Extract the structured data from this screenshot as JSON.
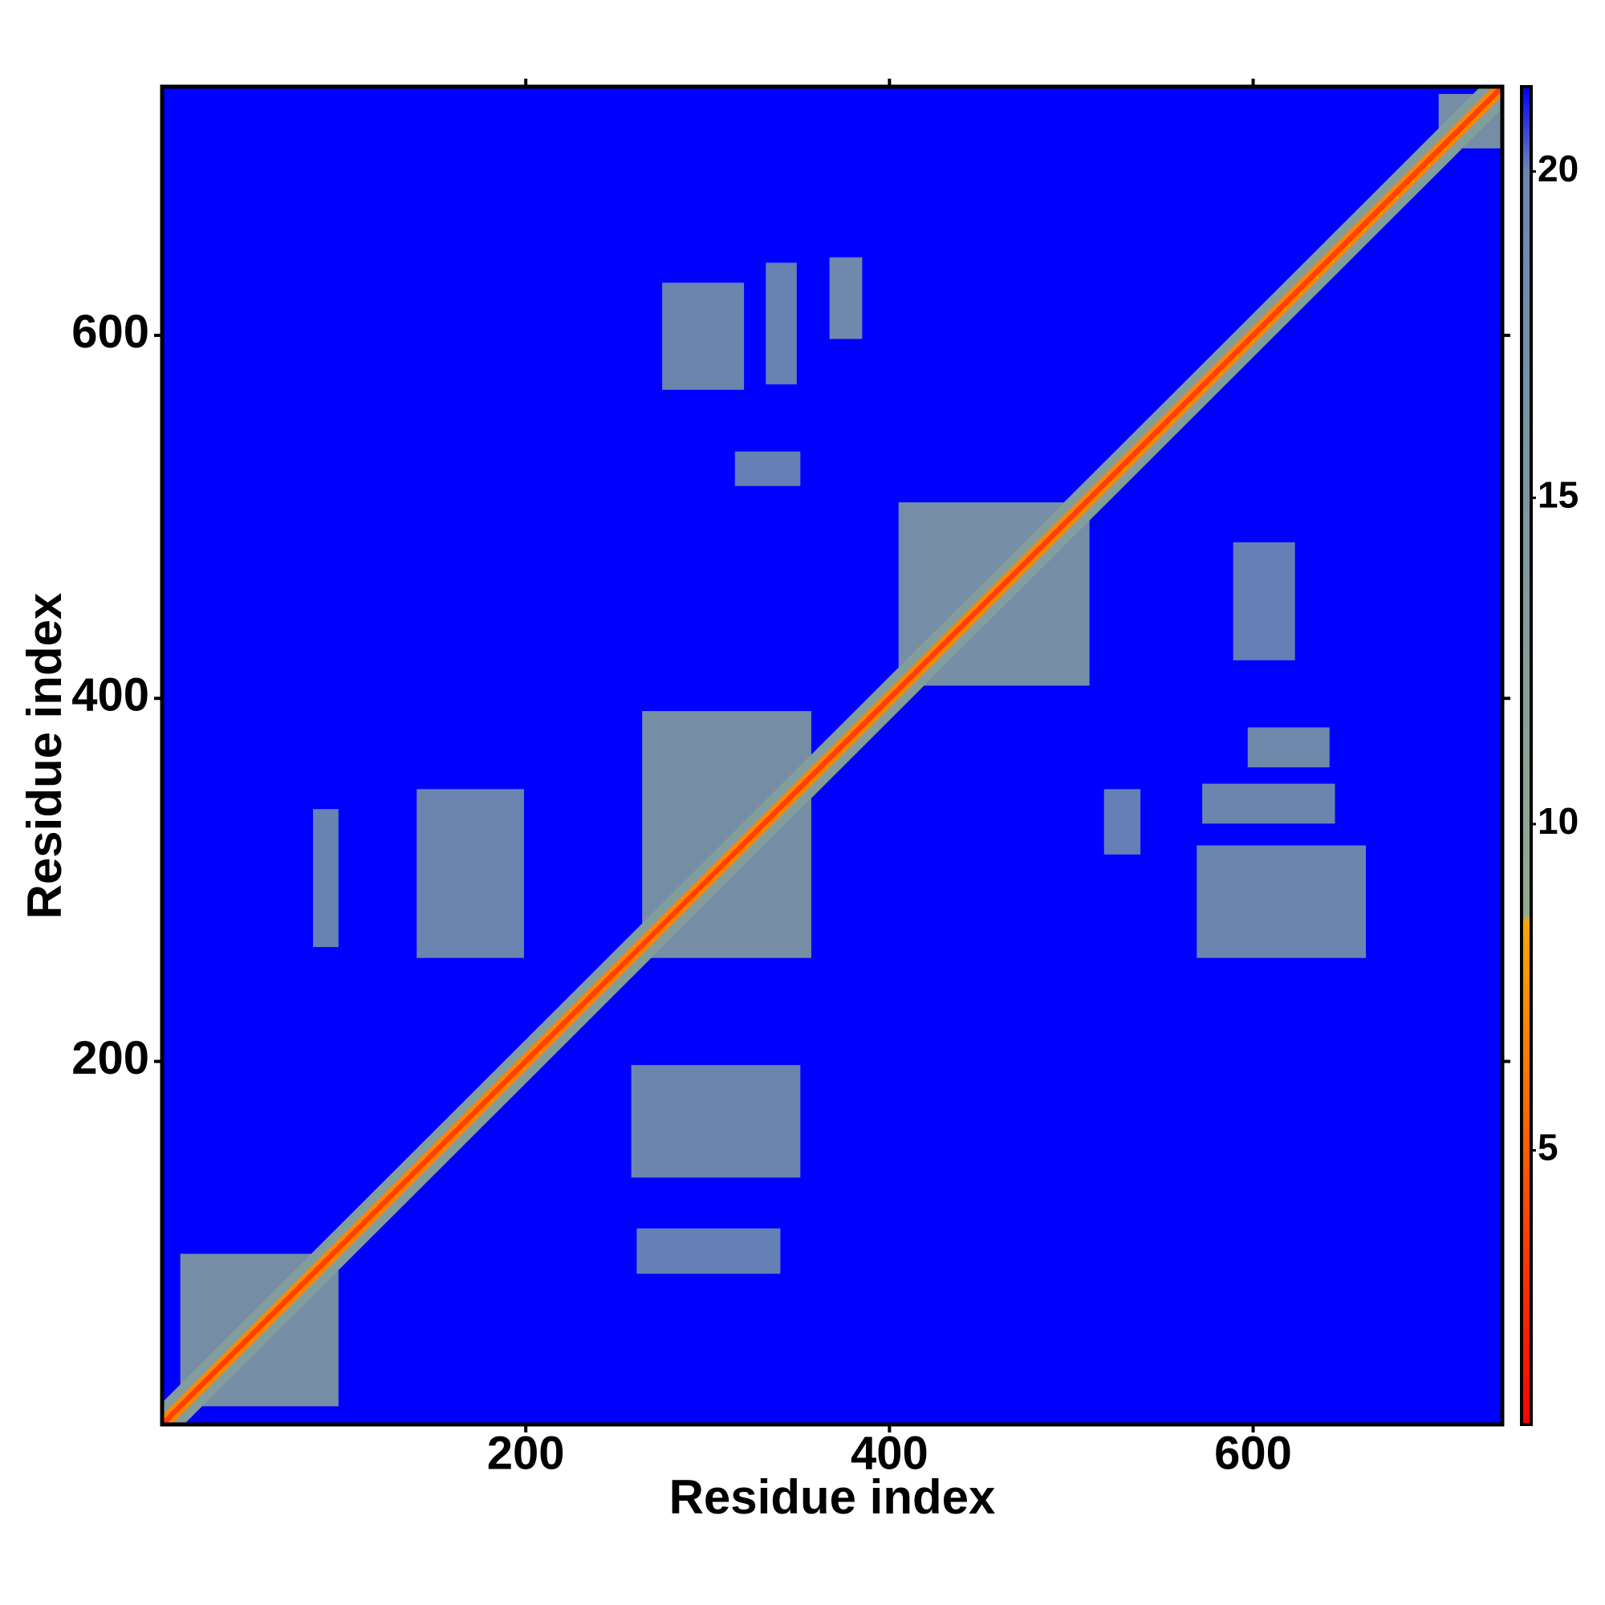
{
  "chart_data": {
    "type": "heatmap",
    "x_label": "Residue index",
    "y_label": "Residue index",
    "xlim": [
      0,
      737
    ],
    "ylim": [
      0,
      737
    ],
    "xticks": [
      200,
      400,
      600
    ],
    "yticks": [
      200,
      400,
      600
    ],
    "clim": [
      0.8,
      21.3
    ],
    "colorbar_ticks": [
      5,
      10,
      15,
      20
    ],
    "colorscale": [
      {
        "value": 0.8,
        "color": "#ff0000"
      },
      {
        "value": 8.5,
        "color": "#ffa500"
      },
      {
        "value": 8.6,
        "color": "#93aa8c"
      },
      {
        "value": 20,
        "color": "#6888b4"
      },
      {
        "value": 21.3,
        "color": "#0000ff"
      }
    ],
    "diagonal_bands": [
      {
        "width": 12,
        "value": 13
      },
      {
        "width": 5,
        "value": 7
      },
      {
        "width": 2,
        "value": 3.8
      }
    ],
    "regions": [
      {
        "x": [
          10,
          97
        ],
        "y": [
          10,
          94
        ],
        "value": 13
      },
      {
        "x": [
          258,
          351
        ],
        "y": [
          136,
          198
        ],
        "value": 16
      },
      {
        "x": [
          261,
          340
        ],
        "y": [
          83,
          108
        ],
        "value": 18
      },
      {
        "x": [
          275,
          320
        ],
        "y": [
          570,
          629
        ],
        "value": 16
      },
      {
        "x": [
          332,
          349
        ],
        "y": [
          573,
          640
        ],
        "value": 17
      },
      {
        "x": [
          367,
          385
        ],
        "y": [
          598,
          643
        ],
        "value": 15
      },
      {
        "x": [
          315,
          351
        ],
        "y": [
          517,
          536
        ],
        "value": 18
      },
      {
        "x": [
          140,
          199
        ],
        "y": [
          257,
          350
        ],
        "value": 16
      },
      {
        "x": [
          83,
          97
        ],
        "y": [
          263,
          339
        ],
        "value": 17
      },
      {
        "x": [
          569,
          662
        ],
        "y": [
          257,
          319
        ],
        "value": 16
      },
      {
        "x": [
          572,
          645
        ],
        "y": [
          331,
          353
        ],
        "value": 16
      },
      {
        "x": [
          597,
          642
        ],
        "y": [
          362,
          384
        ],
        "value": 15
      },
      {
        "x": [
          589,
          623
        ],
        "y": [
          421,
          486
        ],
        "value": 18
      },
      {
        "x": [
          518,
          538
        ],
        "y": [
          314,
          350
        ],
        "value": 18
      },
      {
        "x": [
          405,
          510
        ],
        "y": [
          407,
          508
        ],
        "value": 13
      },
      {
        "x": [
          264,
          357
        ],
        "y": [
          257,
          393
        ],
        "value": 13
      },
      {
        "x": [
          702,
          736
        ],
        "y": [
          703,
          733
        ],
        "value": 13
      }
    ]
  }
}
